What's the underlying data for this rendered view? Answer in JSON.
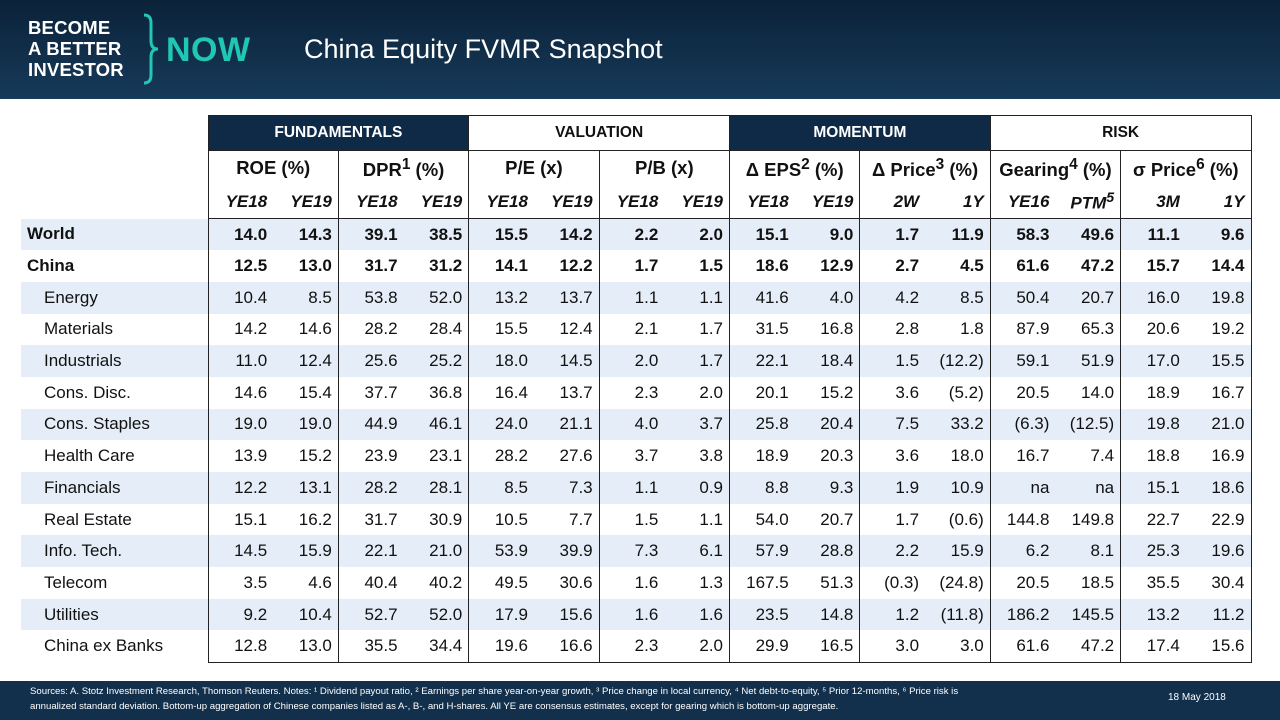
{
  "header": {
    "logo_line1": "BECOME",
    "logo_line2": "A BETTER",
    "logo_line3": "INVESTOR",
    "logo_now": "NOW",
    "title": "China Equity FVMR Snapshot"
  },
  "colors": {
    "header_bg": "#12304c",
    "accent": "#20c7b4",
    "group_dark": "#0f2a47",
    "row_alt": "#e5eef8"
  },
  "groups": [
    "FUNDAMENTALS",
    "VALUATION",
    "MOMENTUM",
    "RISK"
  ],
  "metrics": [
    {
      "name": "ROE (%)",
      "sup": ""
    },
    {
      "name": "DPR",
      "sup": "1",
      "tail": " (%)"
    },
    {
      "name": "P/E (x)",
      "sup": ""
    },
    {
      "name": "P/B (x)",
      "sup": ""
    },
    {
      "name": "Δ EPS",
      "sup": "2",
      "tail": " (%)"
    },
    {
      "name": "Δ Price",
      "sup": "3",
      "tail": " (%)"
    },
    {
      "name": "Gearing",
      "sup": "4",
      "tail": " (%)"
    },
    {
      "name": "σ Price",
      "sup": "6",
      "tail": " (%)"
    }
  ],
  "periods": [
    "YE18",
    "YE19",
    "YE18",
    "YE19",
    "YE18",
    "YE19",
    "YE18",
    "YE19",
    "YE18",
    "YE19",
    "2W",
    "1Y",
    "YE16",
    "PTM5",
    "3M",
    "1Y"
  ],
  "rows": [
    {
      "label": "World",
      "values": [
        "14.0",
        "14.3",
        "39.1",
        "38.5",
        "15.5",
        "14.2",
        "2.2",
        "2.0",
        "15.1",
        "9.0",
        "1.7",
        "11.9",
        "58.3",
        "49.6",
        "11.1",
        "9.6"
      ]
    },
    {
      "label": "China",
      "values": [
        "12.5",
        "13.0",
        "31.7",
        "31.2",
        "14.1",
        "12.2",
        "1.7",
        "1.5",
        "18.6",
        "12.9",
        "2.7",
        "4.5",
        "61.6",
        "47.2",
        "15.7",
        "14.4"
      ]
    },
    {
      "label": "Energy",
      "values": [
        "10.4",
        "8.5",
        "53.8",
        "52.0",
        "13.2",
        "13.7",
        "1.1",
        "1.1",
        "41.6",
        "4.0",
        "4.2",
        "8.5",
        "50.4",
        "20.7",
        "16.0",
        "19.8"
      ]
    },
    {
      "label": "Materials",
      "values": [
        "14.2",
        "14.6",
        "28.2",
        "28.4",
        "15.5",
        "12.4",
        "2.1",
        "1.7",
        "31.5",
        "16.8",
        "2.8",
        "1.8",
        "87.9",
        "65.3",
        "20.6",
        "19.2"
      ]
    },
    {
      "label": "Industrials",
      "values": [
        "11.0",
        "12.4",
        "25.6",
        "25.2",
        "18.0",
        "14.5",
        "2.0",
        "1.7",
        "22.1",
        "18.4",
        "1.5",
        "(12.2)",
        "59.1",
        "51.9",
        "17.0",
        "15.5"
      ]
    },
    {
      "label": "Cons. Disc.",
      "values": [
        "14.6",
        "15.4",
        "37.7",
        "36.8",
        "16.4",
        "13.7",
        "2.3",
        "2.0",
        "20.1",
        "15.2",
        "3.6",
        "(5.2)",
        "20.5",
        "14.0",
        "18.9",
        "16.7"
      ]
    },
    {
      "label": "Cons. Staples",
      "values": [
        "19.0",
        "19.0",
        "44.9",
        "46.1",
        "24.0",
        "21.1",
        "4.0",
        "3.7",
        "25.8",
        "20.4",
        "7.5",
        "33.2",
        "(6.3)",
        "(12.5)",
        "19.8",
        "21.0"
      ]
    },
    {
      "label": "Health Care",
      "values": [
        "13.9",
        "15.2",
        "23.9",
        "23.1",
        "28.2",
        "27.6",
        "3.7",
        "3.8",
        "18.9",
        "20.3",
        "3.6",
        "18.0",
        "16.7",
        "7.4",
        "18.8",
        "16.9"
      ]
    },
    {
      "label": "Financials",
      "values": [
        "12.2",
        "13.1",
        "28.2",
        "28.1",
        "8.5",
        "7.3",
        "1.1",
        "0.9",
        "8.8",
        "9.3",
        "1.9",
        "10.9",
        "na",
        "na",
        "15.1",
        "18.6"
      ]
    },
    {
      "label": "Real Estate",
      "values": [
        "15.1",
        "16.2",
        "31.7",
        "30.9",
        "10.5",
        "7.7",
        "1.5",
        "1.1",
        "54.0",
        "20.7",
        "1.7",
        "(0.6)",
        "144.8",
        "149.8",
        "22.7",
        "22.9"
      ]
    },
    {
      "label": "Info. Tech.",
      "values": [
        "14.5",
        "15.9",
        "22.1",
        "21.0",
        "53.9",
        "39.9",
        "7.3",
        "6.1",
        "57.9",
        "28.8",
        "2.2",
        "15.9",
        "6.2",
        "8.1",
        "25.3",
        "19.6"
      ]
    },
    {
      "label": "Telecom",
      "values": [
        "3.5",
        "4.6",
        "40.4",
        "40.2",
        "49.5",
        "30.6",
        "1.6",
        "1.3",
        "167.5",
        "51.3",
        "(0.3)",
        "(24.8)",
        "20.5",
        "18.5",
        "35.5",
        "30.4"
      ]
    },
    {
      "label": "Utilities",
      "values": [
        "9.2",
        "10.4",
        "52.7",
        "52.0",
        "17.9",
        "15.6",
        "1.6",
        "1.6",
        "23.5",
        "14.8",
        "1.2",
        "(11.8)",
        "186.2",
        "145.5",
        "13.2",
        "11.2"
      ]
    },
    {
      "label": "China ex Banks",
      "values": [
        "12.8",
        "13.0",
        "35.5",
        "34.4",
        "19.6",
        "16.6",
        "2.3",
        "2.0",
        "29.9",
        "16.5",
        "3.0",
        "3.0",
        "61.6",
        "47.2",
        "17.4",
        "15.6"
      ]
    }
  ],
  "footer": {
    "notes_line1": "Sources: A. Stotz Investment Research, Thomson Reuters. Notes: ¹ Dividend payout ratio, ² Earnings per share year-on-year growth, ³ Price change in local currency, ⁴ Net debt-to-equity, ⁵ Prior 12-months, ⁶ Price risk is",
    "notes_line2": "annualized standard deviation. Bottom-up aggregation of Chinese companies listed as A-, B-, and H-shares. All YE are consensus estimates, except for gearing which is bottom-up aggregate.",
    "date": "18 May 2018"
  }
}
